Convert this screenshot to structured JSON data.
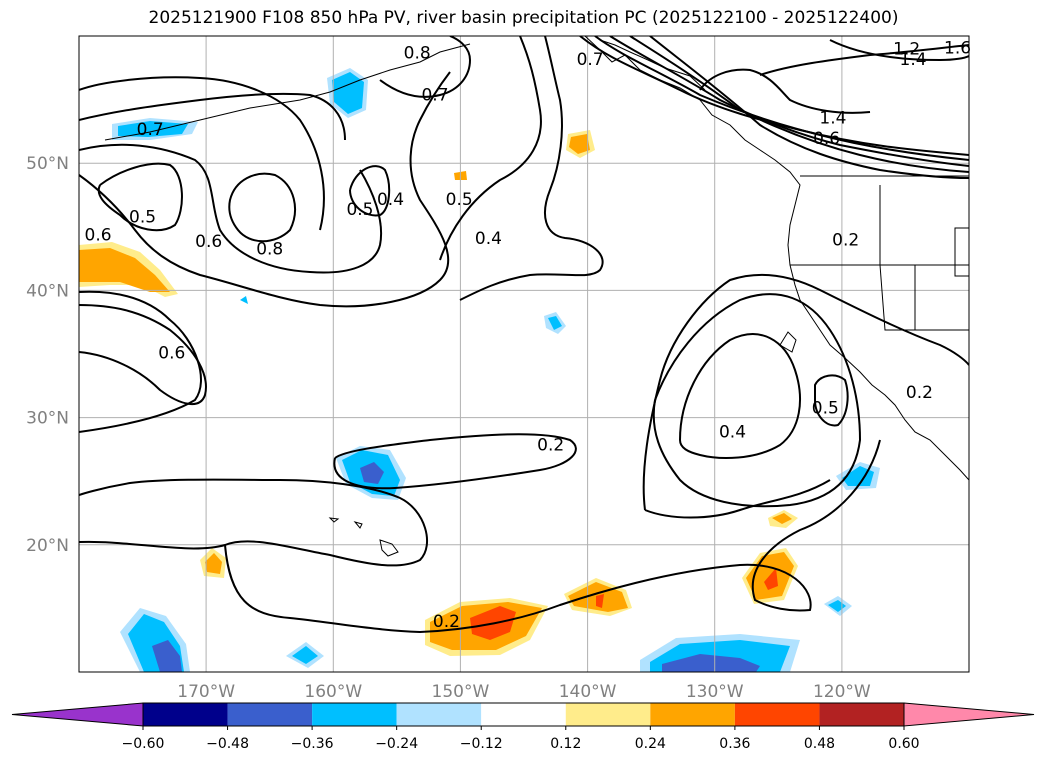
{
  "title": "2025121900 F108 850 hPa PV, river basin precipitation PC (2025122100 - 2025122400)",
  "lat_labels": [
    {
      "lat": 50,
      "text": "50°N"
    },
    {
      "lat": 40,
      "text": "40°N"
    },
    {
      "lat": 30,
      "text": "30°N"
    },
    {
      "lat": 20,
      "text": "20°N"
    }
  ],
  "lon_labels": [
    {
      "lon": -170,
      "text": "170°W"
    },
    {
      "lon": -160,
      "text": "160°W"
    },
    {
      "lon": -150,
      "text": "150°W"
    },
    {
      "lon": -140,
      "text": "140°W"
    },
    {
      "lon": -130,
      "text": "130°W"
    },
    {
      "lon": -120,
      "text": "120°W"
    }
  ],
  "map_extent": {
    "lon_min": -180,
    "lon_max": -110,
    "lat_min": 10,
    "lat_max": 60
  },
  "colorbar": {
    "colors": [
      "#9933cc",
      "#00008b",
      "#3a5fcd",
      "#00bfff",
      "#b0e2ff",
      "#ffffff",
      "#ffec8b",
      "#ffa500",
      "#ff4500",
      "#b22222",
      "#ff88aa"
    ],
    "tick_labels": [
      "−0.60",
      "−0.48",
      "−0.36",
      "−0.24",
      "−0.12",
      "0.12",
      "0.24",
      "0.36",
      "0.48",
      "0.60"
    ]
  },
  "contour_labels": [
    {
      "text": "0.8",
      "lon": -153.4,
      "lat": 58.7
    },
    {
      "text": "0.7",
      "lon": -152.0,
      "lat": 55.4
    },
    {
      "text": "0.7",
      "lon": -174.4,
      "lat": 52.7
    },
    {
      "text": "0.5",
      "lon": -175.0,
      "lat": 45.8
    },
    {
      "text": "0.6",
      "lon": -178.5,
      "lat": 44.4
    },
    {
      "text": "0.6",
      "lon": -169.8,
      "lat": 43.9
    },
    {
      "text": "0.8",
      "lon": -165.0,
      "lat": 43.3
    },
    {
      "text": "0.5",
      "lon": -157.9,
      "lat": 46.4
    },
    {
      "text": "0.4",
      "lon": -155.5,
      "lat": 47.2
    },
    {
      "text": "0.5",
      "lon": -150.1,
      "lat": 47.2
    },
    {
      "text": "0.4",
      "lon": -147.8,
      "lat": 44.1
    },
    {
      "text": "0.6",
      "lon": -172.7,
      "lat": 35.1
    },
    {
      "text": "0.2",
      "lon": -142.9,
      "lat": 27.9
    },
    {
      "text": "0.4",
      "lon": -128.6,
      "lat": 28.9
    },
    {
      "text": "0.5",
      "lon": -121.3,
      "lat": 30.8
    },
    {
      "text": "0.2",
      "lon": -119.7,
      "lat": 44.0
    },
    {
      "text": "0.2",
      "lon": -113.9,
      "lat": 32.0
    },
    {
      "text": "0.2",
      "lon": -151.1,
      "lat": 14.0
    },
    {
      "text": "1.4",
      "lon": -120.7,
      "lat": 53.6
    },
    {
      "text": "0.6",
      "lon": -121.2,
      "lat": 52.0
    },
    {
      "text": "1.2",
      "lon": -114.9,
      "lat": 59.0
    },
    {
      "text": "1.4",
      "lon": -114.4,
      "lat": 58.2
    },
    {
      "text": "1.6",
      "lon": -110.9,
      "lat": 59.1
    },
    {
      "text": "0.7",
      "lon": -139.8,
      "lat": 58.2
    }
  ]
}
